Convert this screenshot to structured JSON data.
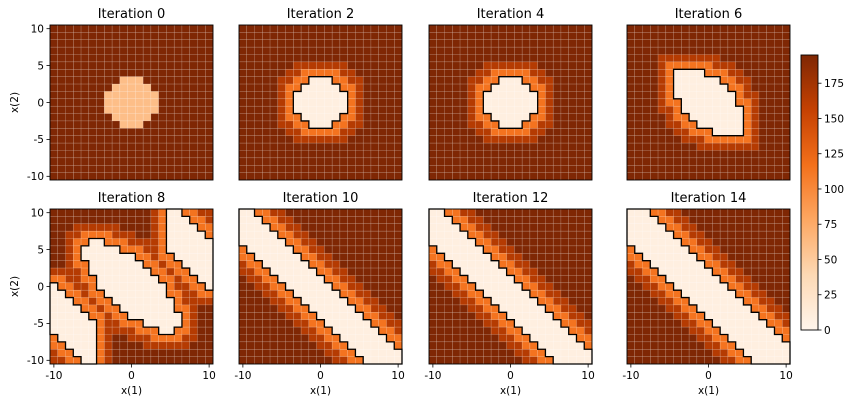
{
  "chart_data": {
    "type": "heatmap",
    "layout": {
      "rows": 2,
      "cols": 4
    },
    "grid_size": 21,
    "x_range": [
      -10.5,
      10.5
    ],
    "y_range": [
      -10.5,
      10.5
    ],
    "xticks": [
      -10,
      0,
      10
    ],
    "yticks": [
      10,
      5,
      0,
      -5,
      -10
    ],
    "xlabel": "x(1)",
    "ylabel": "x(2)",
    "colorbar": {
      "min": 0,
      "max": 195,
      "ticks": [
        0,
        25,
        50,
        75,
        100,
        125,
        150,
        175
      ],
      "colors": [
        "#fff5eb",
        "#fdd9b4",
        "#fda762",
        "#f3701b",
        "#c54102",
        "#7f2704"
      ]
    },
    "panels": [
      {
        "title": "Iteration 0",
        "contour": false,
        "region": {
          "shape": "disk",
          "radius": 3.6,
          "value": 60
        }
      },
      {
        "title": "Iteration 2",
        "contour": true,
        "region": {
          "shape": "ellipse",
          "cx": 0,
          "cy": 0,
          "a": 3.9,
          "b": 3.2,
          "tilt": 0.8,
          "value": 8
        }
      },
      {
        "title": "Iteration 4",
        "contour": true,
        "region": {
          "shape": "ellipse",
          "cx": 0,
          "cy": 0,
          "a": 3.9,
          "b": 3.2,
          "tilt": 0.8,
          "value": 8
        }
      },
      {
        "title": "Iteration 6",
        "contour": true,
        "region": {
          "shape": "ellipse",
          "cx": 0,
          "cy": 0,
          "a": 4.9,
          "b": 3.1,
          "tilt": 1.5,
          "value": 8
        }
      },
      {
        "title": "Iteration 8",
        "contour": true,
        "region": {
          "shape": "ellipse",
          "cx": 0,
          "cy": 0,
          "a": 6.4,
          "b": 3.1,
          "tilt": 1.6,
          "value": 8
        },
        "edge_band": {
          "offset": 13,
          "width": 1.2,
          "value": 8
        }
      },
      {
        "title": "Iteration 10",
        "contour": true,
        "region": {
          "shape": "band",
          "offset": 1.5,
          "width": 3.0,
          "value": 8
        }
      },
      {
        "title": "Iteration 12",
        "contour": true,
        "region": {
          "shape": "band",
          "offset": 1.3,
          "width": 3.2,
          "value": 8
        }
      },
      {
        "title": "Iteration 14",
        "contour": true,
        "region": {
          "shape": "band",
          "offset": 1.3,
          "width": 3.3,
          "value": 8
        }
      }
    ]
  }
}
